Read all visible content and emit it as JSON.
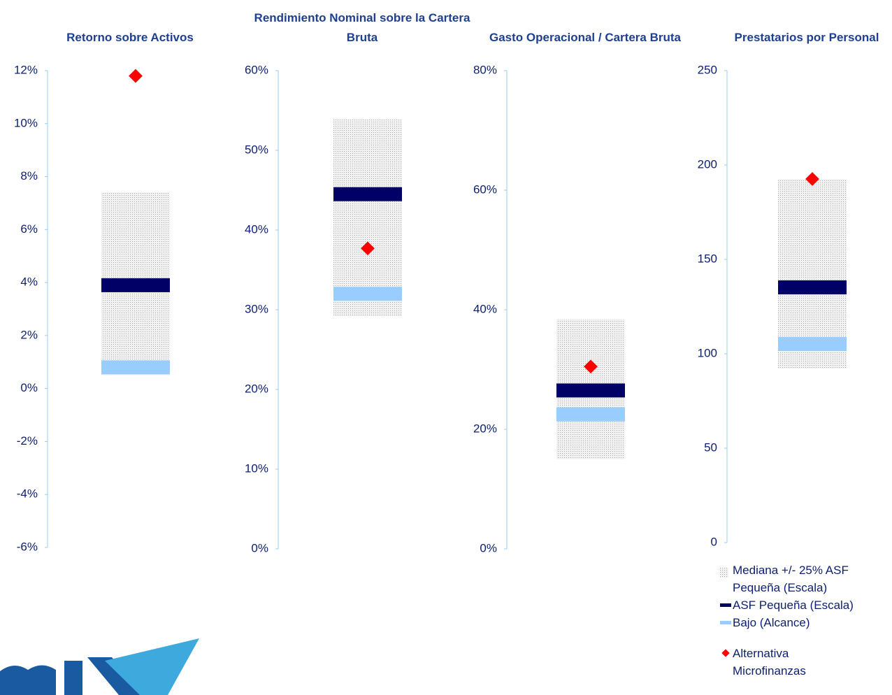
{
  "chart_data": [
    {
      "type": "range",
      "title": "Retorno sobre Activos",
      "ylim": [
        -6,
        12
      ],
      "yticks": [
        {
          "value": 12,
          "label": "12%"
        },
        {
          "value": 10,
          "label": "10%"
        },
        {
          "value": 8,
          "label": "8%"
        },
        {
          "value": 6,
          "label": "6%"
        },
        {
          "value": 4,
          "label": "4%"
        },
        {
          "value": 2,
          "label": "2%"
        },
        {
          "value": 0,
          "label": "0%"
        },
        {
          "value": -2,
          "label": "-2%"
        },
        {
          "value": -4,
          "label": "-4%"
        },
        {
          "value": -6,
          "label": "-6%"
        }
      ],
      "range": [
        0.5,
        7.4
      ],
      "asf": 3.9,
      "bajo": 0.8,
      "alt": 11.8
    },
    {
      "type": "range",
      "title": "Rendimiento Nominal sobre la Cartera Bruta",
      "ylim": [
        0,
        60
      ],
      "yticks": [
        {
          "value": 60,
          "label": "60%"
        },
        {
          "value": 50,
          "label": "50%"
        },
        {
          "value": 40,
          "label": "40%"
        },
        {
          "value": 30,
          "label": "30%"
        },
        {
          "value": 20,
          "label": "20%"
        },
        {
          "value": 10,
          "label": "10%"
        },
        {
          "value": 0,
          "label": "0%"
        }
      ],
      "range": [
        29.2,
        53.9
      ],
      "asf": 44.5,
      "bajo": 32.0,
      "alt": 37.7
    },
    {
      "type": "range",
      "title": "Gasto Operacional / Cartera Bruta",
      "ylim": [
        0,
        80
      ],
      "yticks": [
        {
          "value": 80,
          "label": "80%"
        },
        {
          "value": 60,
          "label": "60%"
        },
        {
          "value": 40,
          "label": "40%"
        },
        {
          "value": 20,
          "label": "20%"
        },
        {
          "value": 0,
          "label": "0%"
        }
      ],
      "range": [
        15.0,
        38.4
      ],
      "asf": 26.5,
      "bajo": 22.5,
      "alt": 30.5
    },
    {
      "type": "range",
      "title": "Prestatarios por Personal",
      "ylim": [
        0,
        250
      ],
      "yticks": [
        250,
        200,
        150,
        100,
        50,
        0
      ],
      "range": [
        92.2,
        192.6
      ],
      "asf": 135.2,
      "bajo": 105.2,
      "alt": 192.6
    }
  ],
  "legend": [
    {
      "name": "Mediana +/- 25% ASF Pequeña (Escala)",
      "color": "#c8c8c8"
    },
    {
      "name": "ASF Pequeña (Escala)",
      "color": "#000066"
    },
    {
      "name": "Bajo (Alcance)",
      "color": "#99ccff"
    },
    {
      "name": "Alternativa Microfinanzas",
      "color": "#ff0000"
    }
  ]
}
